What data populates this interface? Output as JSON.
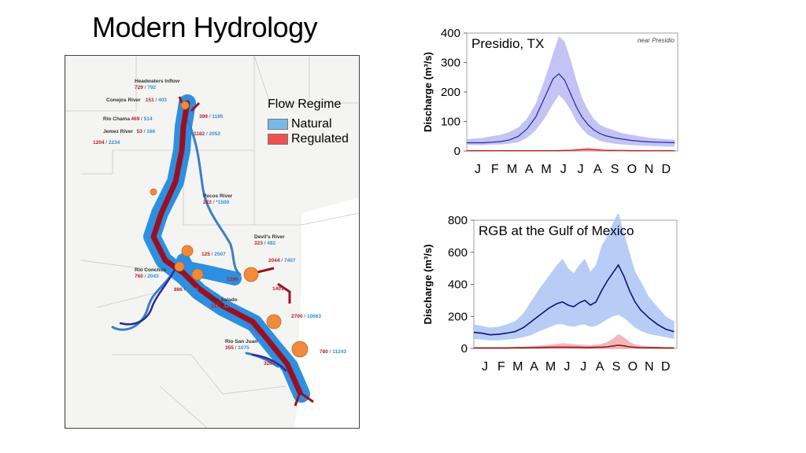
{
  "title": "Modern Hydrology",
  "legend": {
    "title": "Flow Regime",
    "items": [
      {
        "label": "Natural",
        "color": "#7ab8e8"
      },
      {
        "label": "Regulated",
        "color": "#f05050"
      }
    ]
  },
  "map_labels": [
    {
      "name": "Headwaters Inflow",
      "reg": "729",
      "nat": "792"
    },
    {
      "name": "Conejos River",
      "reg": "151",
      "nat": "403"
    },
    {
      "name": "Rio Chama",
      "reg": "469",
      "nat": "514"
    },
    {
      "name": "Jemez River",
      "reg": "53",
      "nat": "166"
    },
    {
      "name": "",
      "reg": "1204",
      "nat": "2234"
    },
    {
      "name": "",
      "reg": "399",
      "nat": "1195"
    },
    {
      "name": "",
      "reg": "1182",
      "nat": "2052"
    },
    {
      "name": "Pecos River",
      "reg": "222",
      "nat": "*1500"
    },
    {
      "name": "Devil's River",
      "reg": "323",
      "nat": "492"
    },
    {
      "name": "",
      "reg": "125",
      "nat": "2507"
    },
    {
      "name": "",
      "reg": "2044",
      "nat": "7407"
    },
    {
      "name": "Rio Conchos",
      "reg": "760",
      "nat": "2043"
    },
    {
      "name": "",
      "reg": "1296",
      "nat": ""
    },
    {
      "name": "",
      "reg": "886",
      "nat": "4584"
    },
    {
      "name": "",
      "reg": "1401",
      "nat": ""
    },
    {
      "name": "Rio Salado",
      "reg": "317",
      "nat": "1212"
    },
    {
      "name": "",
      "reg": "2700",
      "nat": "10663"
    },
    {
      "name": "Rio San Juan",
      "reg": "355",
      "nat": "1075"
    },
    {
      "name": "",
      "reg": "3263",
      "nat": ""
    },
    {
      "name": "",
      "reg": "780",
      "nat": "11243"
    }
  ],
  "chart_data": [
    {
      "type": "line",
      "title": "Presidio, TX",
      "annotation": "near Presidio",
      "ylabel": "Discharge (m³/s)",
      "xlabel": "",
      "ylim": [
        0,
        400
      ],
      "yticks": [
        0,
        100,
        200,
        300,
        400
      ],
      "xticks": [
        "J",
        "F",
        "M",
        "A",
        "M",
        "J",
        "J",
        "A",
        "S",
        "O",
        "N",
        "D"
      ],
      "x": [
        1,
        15,
        30,
        45,
        60,
        75,
        90,
        105,
        120,
        135,
        150,
        160,
        170,
        180,
        190,
        200,
        210,
        220,
        230,
        240,
        255,
        270,
        285,
        300,
        315,
        330,
        345,
        360
      ],
      "series": [
        {
          "kind": "band",
          "color": "#b8b8f2",
          "upper": [
            40,
            42,
            45,
            50,
            55,
            65,
            80,
            110,
            160,
            240,
            330,
            390,
            370,
            310,
            240,
            180,
            140,
            110,
            90,
            80,
            70,
            60,
            55,
            50,
            45,
            42,
            40,
            38
          ],
          "lower": [
            20,
            20,
            20,
            22,
            22,
            25,
            30,
            45,
            70,
            110,
            160,
            190,
            170,
            140,
            100,
            75,
            55,
            45,
            35,
            30,
            25,
            22,
            20,
            18,
            17,
            16,
            15,
            15
          ]
        },
        {
          "kind": "line",
          "color": "#2828a8",
          "values": [
            28,
            28,
            28,
            30,
            32,
            38,
            50,
            75,
            115,
            180,
            245,
            262,
            240,
            195,
            150,
            115,
            90,
            72,
            60,
            52,
            45,
            40,
            36,
            33,
            31,
            30,
            29,
            28
          ]
        },
        {
          "kind": "band",
          "color": "#f4b0b0",
          "upper": [
            2,
            2,
            2,
            2,
            2,
            2,
            2,
            2,
            3,
            3,
            3,
            4,
            5,
            6,
            8,
            10,
            12,
            10,
            8,
            6,
            5,
            4,
            3,
            3,
            2,
            2,
            2,
            2
          ],
          "lower": [
            0,
            0,
            0,
            0,
            0,
            0,
            0,
            0,
            0,
            0,
            0,
            0,
            0,
            0,
            0,
            0,
            0,
            0,
            0,
            0,
            0,
            0,
            0,
            0,
            0,
            0,
            0,
            0
          ]
        },
        {
          "kind": "line",
          "color": "#c01818",
          "values": [
            1,
            1,
            1,
            1,
            1,
            1,
            1,
            1,
            1,
            1,
            1,
            1,
            2,
            2,
            3,
            4,
            5,
            4,
            3,
            2,
            2,
            2,
            1,
            1,
            1,
            1,
            1,
            1
          ]
        }
      ]
    },
    {
      "type": "line",
      "title": "RGB at the Gulf of Mexico",
      "ylabel": "Discharge (m³/s)",
      "xlabel": "",
      "ylim": [
        0,
        800
      ],
      "yticks": [
        0,
        200,
        400,
        600,
        800
      ],
      "xticks": [
        "J",
        "F",
        "M",
        "A",
        "M",
        "J",
        "J",
        "A",
        "S",
        "O",
        "N",
        "D"
      ],
      "x": [
        1,
        15,
        30,
        45,
        60,
        75,
        90,
        105,
        120,
        135,
        150,
        160,
        170,
        180,
        190,
        200,
        210,
        220,
        230,
        240,
        250,
        260,
        270,
        280,
        290,
        300,
        315,
        330,
        345,
        360
      ],
      "series": [
        {
          "kind": "band",
          "color": "#aac4f5",
          "upper": [
            150,
            140,
            130,
            135,
            150,
            170,
            220,
            300,
            380,
            450,
            520,
            560,
            500,
            470,
            520,
            560,
            480,
            520,
            640,
            700,
            780,
            850,
            720,
            600,
            480,
            420,
            320,
            260,
            200,
            170
          ],
          "lower": [
            60,
            55,
            50,
            50,
            55,
            60,
            70,
            85,
            110,
            130,
            150,
            150,
            140,
            135,
            145,
            150,
            135,
            140,
            160,
            180,
            200,
            210,
            190,
            160,
            130,
            110,
            90,
            80,
            70,
            60
          ]
        },
        {
          "kind": "line",
          "color": "#101080",
          "values": [
            100,
            95,
            85,
            88,
            95,
            105,
            130,
            170,
            210,
            250,
            280,
            290,
            270,
            260,
            285,
            300,
            270,
            290,
            360,
            420,
            470,
            520,
            450,
            360,
            290,
            240,
            190,
            150,
            120,
            105
          ]
        },
        {
          "kind": "band",
          "color": "#f2aaaa",
          "upper": [
            6,
            6,
            6,
            7,
            7,
            8,
            10,
            14,
            18,
            22,
            28,
            32,
            30,
            26,
            24,
            22,
            20,
            24,
            28,
            40,
            60,
            90,
            70,
            40,
            25,
            18,
            12,
            10,
            8,
            7
          ],
          "lower": [
            0,
            0,
            0,
            0,
            0,
            0,
            0,
            0,
            0,
            0,
            0,
            0,
            0,
            0,
            0,
            0,
            0,
            0,
            0,
            0,
            0,
            0,
            0,
            0,
            0,
            0,
            0,
            0,
            0,
            0
          ]
        },
        {
          "kind": "line",
          "color": "#a01010",
          "values": [
            3,
            3,
            3,
            3,
            3,
            4,
            4,
            5,
            6,
            7,
            8,
            8,
            8,
            7,
            7,
            6,
            6,
            7,
            8,
            10,
            14,
            20,
            16,
            10,
            7,
            5,
            4,
            4,
            3,
            3
          ]
        }
      ]
    }
  ]
}
